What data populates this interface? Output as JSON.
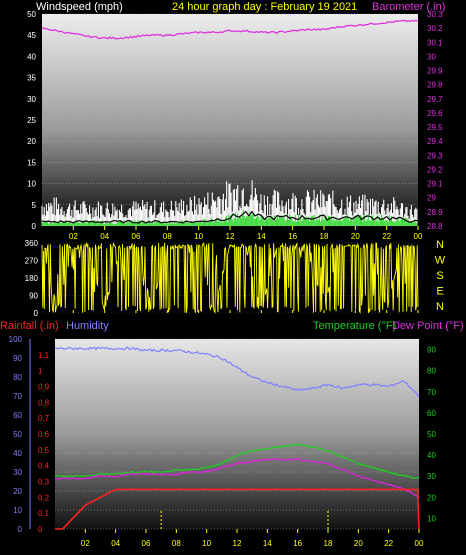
{
  "header": {
    "windspeed_label": "Windspeed (mph)",
    "title": "24 hour graph day : February 19 2021",
    "barometer_label": "Barometer (.in)"
  },
  "middle": {
    "compass_letters": [
      "N",
      "W",
      "S",
      "E",
      "N"
    ]
  },
  "bottom_header": {
    "rainfall_label": "Rainfall (.in)",
    "humidity_label": "Humidity",
    "temperature_label": "Temperature (°F)",
    "dewpoint_label": "Dew Point (°F)"
  },
  "colors": {
    "wind_avg": "#ffffff",
    "wind_gust": "#33dd33",
    "wind_dark": "#000000",
    "barometer": "#dd33dd",
    "direction": "#ffff00",
    "rainfall": "#ff2222",
    "humidity": "#8080ff",
    "temperature": "#22cc22",
    "dewpoint": "#dd22dd",
    "tick": "#ffff00"
  },
  "chart_data": [
    {
      "type": "line",
      "panel": "wind_pressure",
      "x_ticks": [
        "02",
        "04",
        "06",
        "08",
        "10",
        "12",
        "14",
        "16",
        "18",
        "20",
        "22",
        "00"
      ],
      "xlim_hours": [
        0,
        24
      ],
      "y_left": {
        "label": "Windspeed (mph)",
        "ylim": [
          0,
          50
        ],
        "ticks": [
          0,
          5,
          10,
          15,
          20,
          25,
          30,
          35,
          40,
          45,
          50
        ]
      },
      "y_right": {
        "label": "Barometer (.in)",
        "ylim": [
          28.8,
          30.3
        ],
        "ticks": [
          "28.8",
          "28.9",
          "29",
          "29.1",
          "29.2",
          "29.3",
          "29.4",
          "29.5",
          "29.6",
          "29.7",
          "29.8",
          "29.9",
          "30",
          "30.1",
          "30.2",
          "30.3"
        ]
      },
      "series": [
        {
          "name": "Barometer (.in)",
          "axis": "right",
          "x": [
            0,
            1,
            2,
            3,
            4,
            5,
            6,
            7,
            8,
            9,
            10,
            11,
            12,
            13,
            14,
            15,
            16,
            17,
            18,
            19,
            20,
            21,
            22,
            23,
            24
          ],
          "y": [
            30.2,
            30.18,
            30.16,
            30.14,
            30.13,
            30.13,
            30.14,
            30.15,
            30.15,
            30.16,
            30.17,
            30.17,
            30.18,
            30.18,
            30.17,
            30.17,
            30.18,
            30.19,
            30.19,
            30.21,
            30.22,
            30.23,
            30.24,
            30.25,
            30.25
          ]
        },
        {
          "name": "Wind gust (mph)",
          "axis": "left",
          "x": [
            0,
            2,
            4,
            6,
            8,
            10,
            12,
            13,
            14,
            16,
            18,
            20,
            22,
            24
          ],
          "y": [
            6,
            5,
            5,
            5,
            5,
            6,
            9,
            11,
            7,
            7,
            7,
            6,
            6,
            4
          ]
        },
        {
          "name": "Wind average (mph)",
          "axis": "left",
          "x": [
            0,
            2,
            4,
            6,
            8,
            10,
            12,
            13,
            14,
            16,
            18,
            20,
            22,
            24
          ],
          "y": [
            1,
            1,
            1,
            1,
            1,
            1,
            2,
            3,
            2,
            2,
            2,
            2,
            2,
            1
          ]
        }
      ]
    },
    {
      "type": "scatter",
      "panel": "wind_direction",
      "x_ticks": [
        "02",
        "04",
        "06",
        "08",
        "10",
        "12",
        "14",
        "16",
        "18",
        "20",
        "22",
        "00"
      ],
      "xlim_hours": [
        0,
        24
      ],
      "ylim": [
        0,
        360
      ],
      "y_ticks": [
        0,
        90,
        180,
        270,
        360
      ],
      "series": [
        {
          "name": "Wind direction",
          "x": [
            0,
            1,
            2,
            3,
            4,
            5,
            6,
            7,
            8,
            9,
            10,
            11,
            12,
            13,
            14,
            15,
            16,
            17,
            18,
            19,
            20,
            21,
            22,
            23,
            24
          ],
          "y": [
            350,
            20,
            340,
            300,
            10,
            330,
            350,
            40,
            320,
            350,
            300,
            20,
            350,
            330,
            10,
            340,
            350,
            300,
            30,
            340,
            350,
            320,
            20,
            350,
            340
          ]
        }
      ]
    },
    {
      "type": "line",
      "panel": "temp_humidity_rain",
      "x_ticks": [
        "02",
        "04",
        "06",
        "08",
        "10",
        "12",
        "14",
        "16",
        "18",
        "20",
        "22",
        "00"
      ],
      "xlim_hours": [
        0,
        24
      ],
      "y_humidity": {
        "label": "Humidity",
        "ylim": [
          0,
          100
        ],
        "ticks": [
          0,
          10,
          20,
          30,
          40,
          50,
          60,
          70,
          80,
          90,
          100
        ]
      },
      "y_rain": {
        "label": "Rainfall (.in)",
        "ylim": [
          0,
          1.2
        ],
        "ticks": [
          "0",
          "0.1",
          "0.2",
          "0.3",
          "0.4",
          "0.5",
          "0.6",
          "0.7",
          "0.8",
          "0.9",
          "1",
          "1.1"
        ]
      },
      "y_temp": {
        "label": "Temperature (°F)",
        "ylim": [
          5,
          95
        ],
        "ticks": [
          10,
          20,
          30,
          40,
          50,
          60,
          70,
          80,
          90
        ]
      },
      "series": [
        {
          "name": "Humidity",
          "axis": "humidity",
          "x": [
            0,
            1,
            2,
            3,
            4,
            5,
            6,
            7,
            8,
            9,
            10,
            11,
            12,
            13,
            14,
            15,
            16,
            17,
            18,
            19,
            20,
            21,
            22,
            23,
            24
          ],
          "y": [
            95,
            95,
            95,
            95,
            95,
            95,
            94,
            94,
            94,
            93,
            92,
            90,
            85,
            80,
            77,
            75,
            73,
            74,
            76,
            74,
            76,
            76,
            75,
            78,
            70
          ]
        },
        {
          "name": "Temperature (°F)",
          "axis": "temp",
          "x": [
            0,
            1,
            2,
            3,
            4,
            5,
            6,
            7,
            8,
            9,
            10,
            11,
            12,
            13,
            14,
            15,
            16,
            17,
            18,
            19,
            20,
            21,
            22,
            23,
            24
          ],
          "y": [
            30,
            30,
            30,
            31,
            31,
            32,
            32,
            32,
            33,
            33,
            34,
            36,
            40,
            42,
            43,
            44,
            45,
            44,
            42,
            39,
            36,
            34,
            32,
            30,
            29
          ]
        },
        {
          "name": "Dew Point (°F)",
          "axis": "temp",
          "x": [
            0,
            1,
            2,
            3,
            4,
            5,
            6,
            7,
            8,
            9,
            10,
            11,
            12,
            13,
            14,
            15,
            16,
            17,
            18,
            19,
            20,
            21,
            22,
            23,
            24
          ],
          "y": [
            29,
            29,
            29,
            30,
            30,
            31,
            31,
            31,
            31,
            32,
            32,
            34,
            36,
            37,
            38,
            38,
            38,
            37,
            36,
            33,
            30,
            28,
            26,
            24,
            20
          ]
        },
        {
          "name": "Rainfall (.in)",
          "axis": "rain",
          "x": [
            0,
            0.5,
            1,
            2,
            3,
            4,
            5,
            6,
            10,
            12,
            14,
            16,
            18,
            20,
            22,
            23.9,
            24
          ],
          "y": [
            0,
            0,
            0.05,
            0.15,
            0.2,
            0.25,
            0.25,
            0.25,
            0.25,
            0.25,
            0.25,
            0.25,
            0.25,
            0.25,
            0.25,
            0.25,
            0.0
          ]
        }
      ],
      "markers_hours": [
        7,
        18
      ]
    }
  ]
}
